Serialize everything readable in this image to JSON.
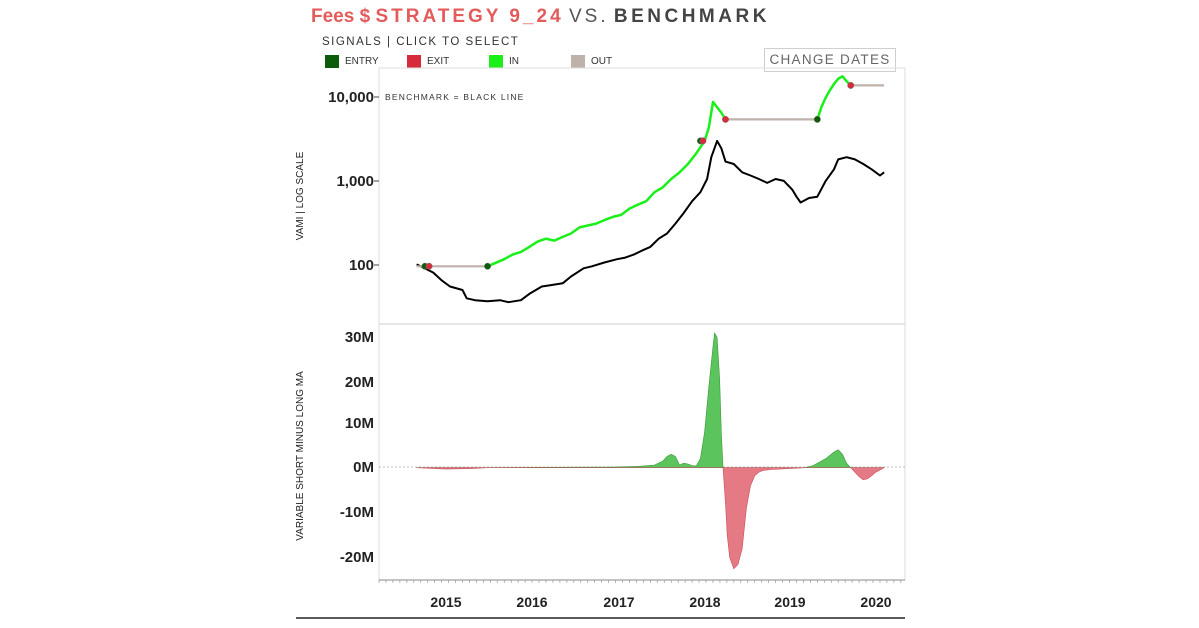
{
  "header": {
    "title_fees": "Fees $",
    "title_strategy": "STRATEGY 9_24",
    "title_vs": "VS.",
    "title_benchmark": "BENCHMARK",
    "signals_label": "SIGNALS | CLICK TO SELECT",
    "change_dates": "CHANGE DATES"
  },
  "legend": [
    {
      "label": "ENTRY",
      "color": "#0a5c0a"
    },
    {
      "label": "EXIT",
      "color": "#d62b3b"
    },
    {
      "label": "IN",
      "color": "#19f019"
    },
    {
      "label": "OUT",
      "color": "#bfb2ab"
    }
  ],
  "colors": {
    "strategy_in": "#19f019",
    "strategy_out": "#bfb2ab",
    "benchmark": "#000000",
    "positive": "#5cc45c",
    "negative": "#e57a84"
  },
  "chart_data": [
    {
      "type": "line",
      "ylabel": "VAMI | LOG SCALE",
      "annotation": "BENCHMARK = BLACK LINE",
      "yscale": "log",
      "ylim": [
        20,
        20000
      ],
      "yticks": [
        {
          "value": 100,
          "label": "100"
        },
        {
          "value": 1000,
          "label": "1,000"
        },
        {
          "value": 10000,
          "label": "10,000"
        }
      ],
      "xlim": [
        2014.0,
        2020.3
      ],
      "series": [
        {
          "x": [
            2014.45,
            2014.55,
            2014.65,
            2014.75,
            2014.85,
            2015.0,
            2015.05,
            2015.15,
            2015.3,
            2015.45,
            2015.55,
            2015.7,
            2015.8,
            2015.95,
            2016.05,
            2016.2,
            2016.3,
            2016.45,
            2016.55,
            2016.7,
            2016.85,
            2016.95,
            2017.05,
            2017.15,
            2017.25,
            2017.35,
            2017.45,
            2017.55,
            2017.65,
            2017.75,
            2017.85,
            2017.93,
            2017.98,
            2018.05,
            2018.1,
            2018.15,
            2018.25,
            2018.35,
            2018.45,
            2018.55,
            2018.65,
            2018.75,
            2018.85,
            2018.95,
            2019.0,
            2019.05,
            2019.15,
            2019.25,
            2019.35,
            2019.45,
            2019.5,
            2019.6,
            2019.7,
            2019.8,
            2019.9,
            2020.0,
            2020.05
          ],
          "values": [
            100,
            90,
            80,
            65,
            55,
            50,
            40,
            38,
            37,
            38,
            36,
            38,
            45,
            55,
            57,
            60,
            72,
            90,
            95,
            105,
            115,
            120,
            130,
            145,
            160,
            200,
            230,
            300,
            400,
            550,
            700,
            1000,
            1800,
            2800,
            2300,
            1600,
            1500,
            1200,
            1100,
            1000,
            900,
            1000,
            950,
            750,
            620,
            530,
            600,
            620,
            950,
            1300,
            1700,
            1800,
            1700,
            1500,
            1300,
            1100,
            1200
          ]
        },
        {
          "segments": [
            {
              "state": "out",
              "x": [
                2014.45,
                2015.3
              ],
              "values": [
                95,
                95
              ]
            },
            {
              "state": "in",
              "x": [
                2015.3,
                2015.5,
                2015.6,
                2015.7,
                2015.8,
                2015.9,
                2016.0,
                2016.1,
                2016.2,
                2016.3,
                2016.4,
                2016.5,
                2016.6,
                2016.7,
                2016.8,
                2016.9,
                2017.0,
                2017.1,
                2017.2,
                2017.3,
                2017.4,
                2017.5,
                2017.6,
                2017.7,
                2017.8,
                2017.9,
                2017.95,
                2018.0,
                2018.1,
                2018.15
              ],
              "values": [
                95,
                115,
                130,
                140,
                160,
                185,
                200,
                190,
                210,
                230,
                270,
                285,
                300,
                330,
                360,
                380,
                450,
                500,
                550,
                700,
                800,
                1000,
                1200,
                1500,
                2000,
                2800,
                4000,
                8000,
                6000,
                5000
              ]
            },
            {
              "state": "out",
              "x": [
                2018.15,
                2019.25
              ],
              "values": [
                5000,
                5000
              ]
            },
            {
              "state": "in",
              "x": [
                2019.25,
                2019.3,
                2019.35,
                2019.4,
                2019.45,
                2019.5,
                2019.55,
                2019.6,
                2019.65
              ],
              "values": [
                5000,
                7000,
                9000,
                11000,
                13000,
                15000,
                16000,
                14000,
                12500
              ]
            },
            {
              "state": "out",
              "x": [
                2019.65,
                2020.05
              ],
              "values": [
                12500,
                12500
              ]
            }
          ],
          "entries": [
            {
              "x": 2014.55,
              "value": 95
            },
            {
              "x": 2015.3,
              "value": 95
            },
            {
              "x": 2017.85,
              "value": 2800
            },
            {
              "x": 2019.25,
              "value": 5000
            }
          ],
          "exits": [
            {
              "x": 2014.6,
              "value": 95
            },
            {
              "x": 2017.88,
              "value": 2800
            },
            {
              "x": 2018.15,
              "value": 5000
            },
            {
              "x": 2019.65,
              "value": 12500
            }
          ]
        }
      ]
    },
    {
      "type": "area",
      "ylabel": "VARIABLE SHORT MINUS LONG MA",
      "ylim": [
        -25000000,
        32000000
      ],
      "yticks": [
        {
          "value": 30000000,
          "label": "30M"
        },
        {
          "value": 20000000,
          "label": "20M"
        },
        {
          "value": 10000000,
          "label": "10M"
        },
        {
          "value": 0,
          "label": "0M"
        },
        {
          "value": -10000000,
          "label": "-10M"
        },
        {
          "value": -20000000,
          "label": "-20M"
        }
      ],
      "xticks": [
        {
          "value": 2015,
          "label": "2015"
        },
        {
          "value": 2016,
          "label": "2016"
        },
        {
          "value": 2017,
          "label": "2017"
        },
        {
          "value": 2018,
          "label": "2018"
        },
        {
          "value": 2019,
          "label": "2019"
        },
        {
          "value": 2020,
          "label": "2020"
        }
      ],
      "x": [
        2014.45,
        2014.8,
        2015.1,
        2015.3,
        2016.0,
        2016.8,
        2017.1,
        2017.3,
        2017.4,
        2017.45,
        2017.5,
        2017.55,
        2017.6,
        2017.65,
        2017.7,
        2017.75,
        2017.8,
        2017.85,
        2017.9,
        2017.95,
        2018.0,
        2018.02,
        2018.05,
        2018.08,
        2018.1,
        2018.12,
        2018.15,
        2018.17,
        2018.2,
        2018.25,
        2018.3,
        2018.35,
        2018.4,
        2018.45,
        2018.5,
        2018.55,
        2018.6,
        2018.7,
        2018.8,
        2018.9,
        2019.0,
        2019.1,
        2019.2,
        2019.25,
        2019.35,
        2019.45,
        2019.5,
        2019.55,
        2019.6,
        2019.65,
        2019.7,
        2019.75,
        2019.8,
        2019.85,
        2019.9,
        2019.95,
        2020.05
      ],
      "values": [
        0,
        -300000,
        -200000,
        0,
        100000,
        150000,
        300000,
        600000,
        1500000,
        2500000,
        3000000,
        2500000,
        600000,
        1000000,
        800000,
        500000,
        400000,
        2000000,
        8000000,
        18000000,
        27000000,
        30000000,
        29000000,
        20000000,
        8000000,
        0,
        -8000000,
        -15000000,
        -20000000,
        -22500000,
        -21500000,
        -18000000,
        -9000000,
        -4000000,
        -1800000,
        -1000000,
        -600000,
        -400000,
        -300000,
        -200000,
        -100000,
        0,
        500000,
        1000000,
        2000000,
        3500000,
        4000000,
        3000000,
        1000000,
        0,
        -1000000,
        -2000000,
        -2700000,
        -2500000,
        -1800000,
        -1000000,
        0
      ]
    }
  ]
}
